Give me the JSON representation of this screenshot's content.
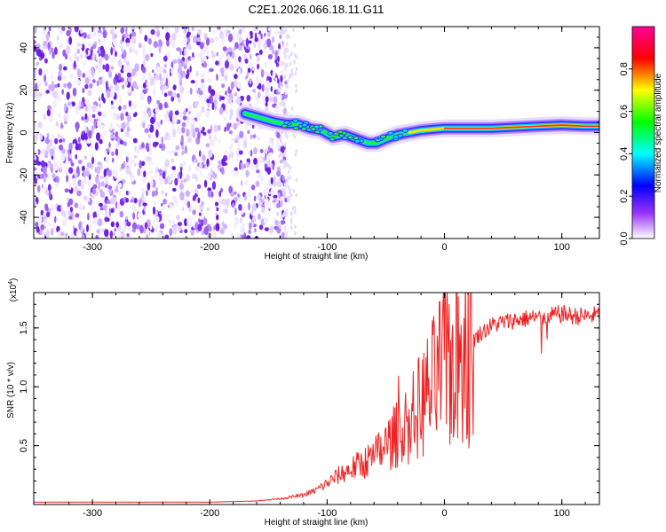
{
  "title": "C2E1.2026.066.18.11.G11",
  "colors": {
    "snr_line": "#ee2222",
    "spectrogram_noise": "#7722ee",
    "frame": "#000000"
  },
  "chart_data": [
    {
      "type": "heatmap",
      "name": "spectrogram",
      "xlabel": "Height of straight line (km)",
      "ylabel": "Frequency (Hz)",
      "xlim": [
        -350,
        132
      ],
      "ylim": [
        -50,
        50
      ],
      "x_ticks": [
        -300,
        -200,
        -100,
        0,
        100
      ],
      "x_tick_labels": [
        "-300",
        "-200",
        "-100",
        "0",
        "100"
      ],
      "y_ticks": [
        -40,
        -20,
        0,
        20,
        40
      ],
      "y_tick_labels": [
        "-40",
        "-20",
        "0",
        "20",
        "40"
      ],
      "noise_region_km": [
        -350,
        -135
      ],
      "signal_track": {
        "x": [
          -170,
          -145,
          -135,
          -125,
          -115,
          -105,
          -95,
          -85,
          -75,
          -65,
          -58,
          -50,
          -45,
          -40,
          -30,
          -20,
          -10,
          0,
          20,
          40,
          60,
          80,
          100,
          120,
          132
        ],
        "frequency_hz": [
          9,
          5,
          4,
          4,
          2,
          1,
          -2,
          -1,
          -3,
          -5,
          -5,
          -3,
          -2,
          -1,
          0,
          1,
          1.5,
          2,
          2,
          2,
          2.5,
          3,
          3.5,
          3,
          3
        ]
      },
      "colorbar": {
        "label": "Normalized spectral amplitude",
        "range": [
          0,
          1
        ],
        "ticks": [
          0.0,
          0.2,
          0.4,
          0.6,
          0.8
        ],
        "tick_labels": [
          "0.0",
          "0.2",
          "0.4",
          "0.6",
          "0.8"
        ]
      }
    },
    {
      "type": "line",
      "name": "snr",
      "xlabel": "Height of straight line (km)",
      "ylabel": "SNR (10 * v/v)",
      "y_multiplier_label": "(x10",
      "y_multiplier_exponent": "4",
      "xlim": [
        -350,
        132
      ],
      "ylim": [
        0,
        1.8
      ],
      "x_ticks": [
        -300,
        -200,
        -100,
        0,
        100
      ],
      "x_tick_labels": [
        "-300",
        "-200",
        "-100",
        "0",
        "100"
      ],
      "y_ticks": [
        0.5,
        1.0,
        1.5
      ],
      "y_tick_labels": [
        "0.5",
        "1.0",
        "1.5"
      ],
      "series": [
        {
          "name": "SNR",
          "x": [
            -350,
            -300,
            -250,
            -200,
            -160,
            -140,
            -120,
            -110,
            -100,
            -90,
            -80,
            -70,
            -60,
            -50,
            -40,
            -30,
            -20,
            -10,
            0,
            5,
            10,
            15,
            20,
            25,
            30,
            40,
            50,
            70,
            90,
            100,
            110,
            120,
            132
          ],
          "values": [
            0.02,
            0.02,
            0.02,
            0.02,
            0.03,
            0.05,
            0.08,
            0.12,
            0.18,
            0.25,
            0.3,
            0.35,
            0.4,
            0.5,
            0.6,
            0.7,
            0.85,
            1.0,
            1.2,
            1.2,
            1.25,
            1.3,
            1.35,
            1.4,
            1.45,
            1.52,
            1.55,
            1.58,
            1.6,
            1.62,
            1.6,
            1.6,
            1.61
          ]
        }
      ]
    }
  ]
}
